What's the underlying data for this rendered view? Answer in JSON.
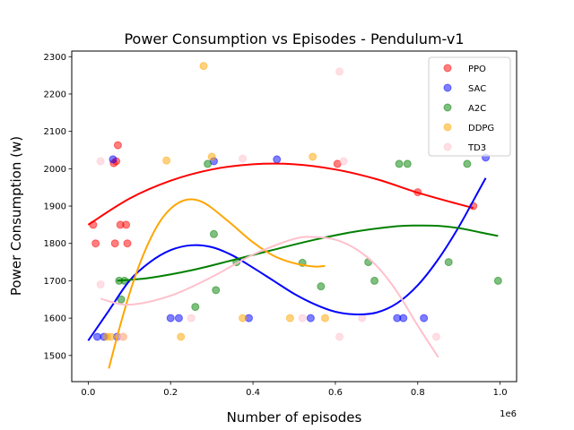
{
  "chart_data": {
    "type": "scatter",
    "title": "Power Consumption vs Episodes - Pendulum-v1",
    "xlabel": "Number of episodes",
    "ylabel": "Power Consumption (w)",
    "x_offset_label": "1e6",
    "xlim": [
      -0.04,
      1.04
    ],
    "ylim": [
      1430,
      2315
    ],
    "x_ticks": [
      0.0,
      0.2,
      0.4,
      0.6,
      0.8,
      1.0
    ],
    "x_tick_labels": [
      "0.0",
      "0.2",
      "0.4",
      "0.6",
      "0.8",
      "1.0"
    ],
    "y_ticks": [
      1500,
      1600,
      1700,
      1800,
      1900,
      2000,
      2100,
      2200,
      2300
    ],
    "y_tick_labels": [
      "1500",
      "1600",
      "1700",
      "1800",
      "1900",
      "2000",
      "2100",
      "2200",
      "2300"
    ],
    "grid": false,
    "legend_position": "top-right",
    "series": [
      {
        "name": "PPO",
        "color": "#ff0000",
        "points": [
          [
            0.012,
            1850
          ],
          [
            0.018,
            1800
          ],
          [
            0.062,
            2015
          ],
          [
            0.065,
            1800
          ],
          [
            0.068,
            2020
          ],
          [
            0.072,
            2063
          ],
          [
            0.078,
            1850
          ],
          [
            0.092,
            1850
          ],
          [
            0.095,
            1800
          ],
          [
            0.605,
            2013
          ],
          [
            0.8,
            1937
          ],
          [
            0.935,
            1900
          ]
        ],
        "fit_line": [
          [
            0.0,
            1850
          ],
          [
            0.1,
            1920
          ],
          [
            0.2,
            1968
          ],
          [
            0.3,
            1998
          ],
          [
            0.4,
            2012
          ],
          [
            0.5,
            2012
          ],
          [
            0.6,
            1998
          ],
          [
            0.7,
            1972
          ],
          [
            0.8,
            1936
          ],
          [
            0.9,
            1905
          ],
          [
            0.935,
            1895
          ]
        ]
      },
      {
        "name": "SAC",
        "color": "#0000ff",
        "points": [
          [
            0.022,
            1550
          ],
          [
            0.038,
            1550
          ],
          [
            0.06,
            2025
          ],
          [
            0.07,
            1550
          ],
          [
            0.2,
            1600
          ],
          [
            0.22,
            1600
          ],
          [
            0.305,
            2020
          ],
          [
            0.39,
            1600
          ],
          [
            0.458,
            2025
          ],
          [
            0.54,
            1600
          ],
          [
            0.75,
            1600
          ],
          [
            0.765,
            1600
          ],
          [
            0.815,
            1600
          ],
          [
            0.965,
            2030
          ]
        ],
        "fit_line": [
          [
            0.0,
            1540
          ],
          [
            0.05,
            1620
          ],
          [
            0.1,
            1700
          ],
          [
            0.15,
            1750
          ],
          [
            0.2,
            1782
          ],
          [
            0.25,
            1795
          ],
          [
            0.3,
            1790
          ],
          [
            0.35,
            1768
          ],
          [
            0.4,
            1735
          ],
          [
            0.45,
            1700
          ],
          [
            0.5,
            1665
          ],
          [
            0.55,
            1637
          ],
          [
            0.6,
            1617
          ],
          [
            0.65,
            1610
          ],
          [
            0.7,
            1615
          ],
          [
            0.75,
            1640
          ],
          [
            0.8,
            1688
          ],
          [
            0.85,
            1758
          ],
          [
            0.9,
            1845
          ],
          [
            0.95,
            1945
          ],
          [
            0.965,
            1975
          ]
        ]
      },
      {
        "name": "A2C",
        "color": "#008000",
        "points": [
          [
            0.075,
            1700
          ],
          [
            0.08,
            1650
          ],
          [
            0.088,
            1700
          ],
          [
            0.26,
            1630
          ],
          [
            0.29,
            2013
          ],
          [
            0.305,
            1825
          ],
          [
            0.31,
            1675
          ],
          [
            0.36,
            1750
          ],
          [
            0.52,
            1748
          ],
          [
            0.565,
            1685
          ],
          [
            0.68,
            1750
          ],
          [
            0.695,
            1700
          ],
          [
            0.755,
            2013
          ],
          [
            0.775,
            2013
          ],
          [
            0.875,
            1750
          ],
          [
            0.92,
            2013
          ],
          [
            0.995,
            1700
          ]
        ],
        "fit_line": [
          [
            0.07,
            1700
          ],
          [
            0.15,
            1708
          ],
          [
            0.25,
            1728
          ],
          [
            0.35,
            1755
          ],
          [
            0.45,
            1783
          ],
          [
            0.55,
            1810
          ],
          [
            0.65,
            1832
          ],
          [
            0.75,
            1846
          ],
          [
            0.8,
            1848
          ],
          [
            0.85,
            1847
          ],
          [
            0.9,
            1841
          ],
          [
            0.95,
            1830
          ],
          [
            0.995,
            1820
          ]
        ]
      },
      {
        "name": "DDPG",
        "color": "#ffa500",
        "points": [
          [
            0.045,
            1550
          ],
          [
            0.055,
            1550
          ],
          [
            0.085,
            1550
          ],
          [
            0.19,
            2022
          ],
          [
            0.225,
            1550
          ],
          [
            0.28,
            2275
          ],
          [
            0.3,
            2032
          ],
          [
            0.375,
            1600
          ],
          [
            0.49,
            1600
          ],
          [
            0.545,
            2032
          ],
          [
            0.575,
            1600
          ]
        ],
        "fit_line": [
          [
            0.05,
            1465
          ],
          [
            0.075,
            1570
          ],
          [
            0.1,
            1665
          ],
          [
            0.125,
            1745
          ],
          [
            0.15,
            1810
          ],
          [
            0.175,
            1860
          ],
          [
            0.2,
            1893
          ],
          [
            0.225,
            1912
          ],
          [
            0.25,
            1918
          ],
          [
            0.275,
            1912
          ],
          [
            0.3,
            1895
          ],
          [
            0.35,
            1850
          ],
          [
            0.4,
            1803
          ],
          [
            0.45,
            1767
          ],
          [
            0.5,
            1747
          ],
          [
            0.55,
            1738
          ],
          [
            0.575,
            1740
          ]
        ]
      },
      {
        "name": "TD3",
        "color": "#ffc0cb",
        "points": [
          [
            0.03,
            2020
          ],
          [
            0.03,
            1690
          ],
          [
            0.075,
            1550
          ],
          [
            0.085,
            1550
          ],
          [
            0.25,
            1600
          ],
          [
            0.375,
            2027
          ],
          [
            0.52,
            1600
          ],
          [
            0.61,
            1550
          ],
          [
            0.61,
            2260
          ],
          [
            0.62,
            2020
          ],
          [
            0.665,
            1600
          ],
          [
            0.845,
            1550
          ]
        ],
        "fit_line": [
          [
            0.03,
            1652
          ],
          [
            0.1,
            1636
          ],
          [
            0.2,
            1660
          ],
          [
            0.3,
            1710
          ],
          [
            0.4,
            1770
          ],
          [
            0.5,
            1812
          ],
          [
            0.55,
            1817
          ],
          [
            0.6,
            1810
          ],
          [
            0.65,
            1785
          ],
          [
            0.7,
            1740
          ],
          [
            0.75,
            1670
          ],
          [
            0.8,
            1580
          ],
          [
            0.85,
            1495
          ]
        ]
      }
    ]
  }
}
